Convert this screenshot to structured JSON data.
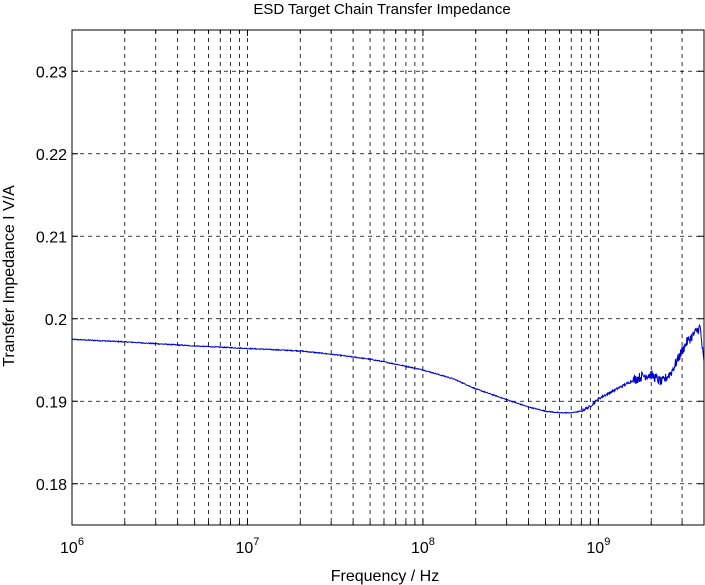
{
  "chart_data": {
    "type": "line",
    "title": "ESD Target Chain Transfer Impedance",
    "xlabel": "Frequency / Hz",
    "ylabel": "Transfer Impedance I V/A",
    "x_scale": "log",
    "xlim": [
      1000000,
      4000000000
    ],
    "ylim": [
      0.175,
      0.235
    ],
    "x_ticks": [
      {
        "value": 1000000,
        "base": "10",
        "exp": "6"
      },
      {
        "value": 10000000,
        "base": "10",
        "exp": "7"
      },
      {
        "value": 100000000,
        "base": "10",
        "exp": "8"
      },
      {
        "value": 1000000000,
        "base": "10",
        "exp": "9"
      }
    ],
    "y_ticks": [
      {
        "value": 0.18,
        "label": "0.18"
      },
      {
        "value": 0.19,
        "label": "0.19"
      },
      {
        "value": 0.2,
        "label": "0.2"
      },
      {
        "value": 0.21,
        "label": "0.21"
      },
      {
        "value": 0.22,
        "label": "0.22"
      },
      {
        "value": 0.23,
        "label": "0.23"
      }
    ],
    "grid": true,
    "grid_style": "dashed",
    "line_color": "#0000cc",
    "series": [
      {
        "x": [
          1000000,
          2000000,
          5000000,
          10000000,
          20000000,
          30000000,
          50000000,
          70000000,
          100000000,
          150000000,
          200000000,
          300000000,
          400000000,
          500000000,
          600000000,
          700000000,
          800000000,
          900000000,
          1000000000,
          1300000000,
          1600000000,
          1800000000,
          2000000000,
          2300000000,
          2600000000,
          2900000000,
          3200000000,
          3500000000,
          3800000000,
          4000000000
        ],
        "y": [
          0.1975,
          0.1972,
          0.1967,
          0.1964,
          0.1961,
          0.1957,
          0.1951,
          0.1945,
          0.1938,
          0.1927,
          0.1915,
          0.1902,
          0.1893,
          0.1888,
          0.1886,
          0.1886,
          0.1888,
          0.1894,
          0.1903,
          0.1916,
          0.1926,
          0.1931,
          0.1932,
          0.1923,
          0.1935,
          0.1955,
          0.1972,
          0.1981,
          0.199,
          0.1945
        ]
      }
    ]
  }
}
